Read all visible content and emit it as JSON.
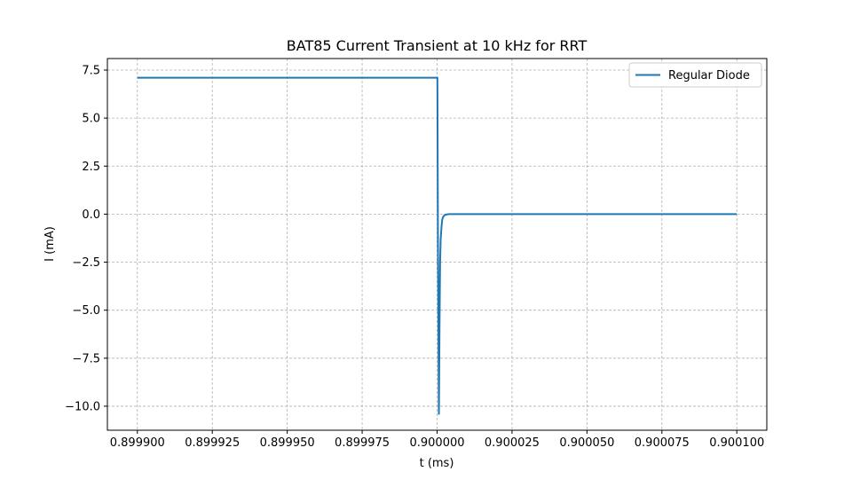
{
  "chart_data": {
    "type": "line",
    "title": "BAT85 Current Transient at 10 kHz for RRT",
    "xlabel": "t (ms)",
    "ylabel": "I (mA)",
    "xlim": [
      0.89989,
      0.90011
    ],
    "ylim": [
      -11.25,
      8.1
    ],
    "xticks": [
      0.8999,
      0.899925,
      0.89995,
      0.899975,
      0.9,
      0.900025,
      0.90005,
      0.900075,
      0.9001
    ],
    "xtick_labels": [
      "0.899900",
      "0.899925",
      "0.899950",
      "0.899975",
      "0.900000",
      "0.900025",
      "0.900050",
      "0.900075",
      "0.900100"
    ],
    "yticks": [
      7.5,
      5.0,
      2.5,
      0.0,
      -2.5,
      -5.0,
      -7.5,
      -10.0
    ],
    "ytick_labels": [
      "7.5",
      "5.0",
      "2.5",
      "0.0",
      "−2.5",
      "−5.0",
      "−7.5",
      "−10.0"
    ],
    "grid": true,
    "legend_position": "top-right",
    "series": [
      {
        "name": "Regular Diode",
        "color": "#1f77b4",
        "x": [
          0.8999,
          0.9000001,
          0.9000003,
          0.9000006,
          0.9000008,
          0.900001,
          0.9000012,
          0.9000015,
          0.9000017,
          0.900002,
          0.9000025,
          0.900003,
          0.900004,
          0.900006,
          0.90001,
          0.9001
        ],
        "y": [
          7.1,
          7.1,
          -2.0,
          -10.4,
          -6.0,
          -2.5,
          -1.3,
          -0.6,
          -0.3,
          -0.15,
          -0.05,
          -0.02,
          0.0,
          0.0,
          0.0,
          0.0
        ]
      }
    ]
  }
}
